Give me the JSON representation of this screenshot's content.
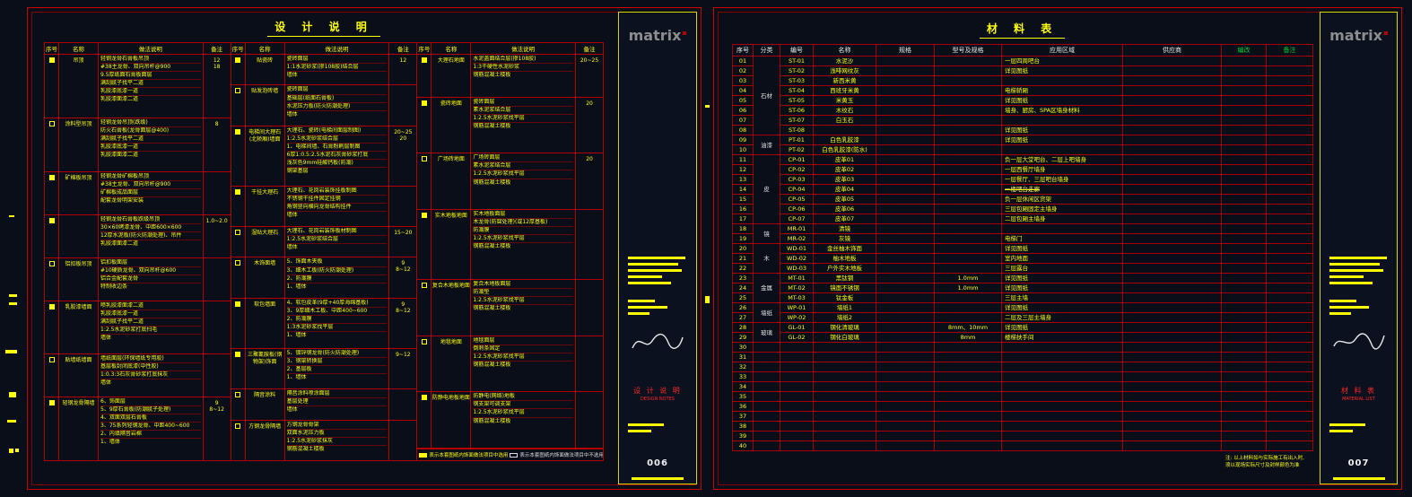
{
  "app": {
    "background": "#0a0e19",
    "grid_red": "#b40000",
    "accent_yellow": "#ffff00"
  },
  "left_sheet": {
    "title": "设 计 说 明",
    "columns": [
      "序号",
      "名称",
      "做法说明",
      "备注"
    ],
    "groups": [
      {
        "rows": [
          {
            "seq": "filled",
            "name": "吊顶",
            "desc": [
              "轻钢龙骨石膏板吊顶",
              "#38主龙骨、双向吊杆@900",
              "9.5厚纸面石膏板面层",
              "满刮腻子找平二道",
              "乳胶漆底漆一道",
              "乳胶漆面漆二道"
            ],
            "note": "12\n18"
          },
          {
            "seq": "empty",
            "name": "涂料型吊顶",
            "desc": [
              "轻钢龙骨吊顶(跌级)",
              "防火石膏板(龙骨面层@400)",
              "满刮腻子找平二道",
              "乳胶漆底漆一道",
              "乳胶漆面漆二道"
            ],
            "note": "8"
          },
          {
            "seq": "filled",
            "name": "矿棉板吊顶",
            "desc": [
              "轻钢龙骨矿棉板吊顶",
              "#38主龙骨、双向吊杆@900",
              "矿棉板成品面层",
              "配套龙骨明架安装"
            ],
            "note": ""
          },
          {
            "seq": "filled",
            "name": "",
            "desc": [
              "轻钢龙骨石膏板跌级吊顶",
              "30×60烤漆龙骨、中距600×600",
              "12厚水泥板(防火防潮处理)、吊件",
              "乳胶漆面漆二道"
            ],
            "note": "1.0~2.0"
          },
          {
            "seq": "empty",
            "name": "铝扣板吊顶",
            "desc": [
              "铝扣板面层",
              "#10硬质龙骨、双向吊杆@600",
              "铝合金配套龙骨",
              "特制收边条"
            ],
            "note": ""
          },
          {
            "seq": "filled",
            "name": "乳胶漆墙面",
            "desc": [
              "喷乳胶漆面漆二道",
              "乳胶漆底漆一道",
              "满刮腻子找平二道",
              "1:2.5水泥砂浆打底扫毛",
              "墙体"
            ],
            "note": ""
          },
          {
            "seq": "empty",
            "name": "贴墙纸墙面",
            "desc": [
              "墙纸面层(环保墙纸专用胶)",
              "基层板封闭底漆(中性胶)",
              "1:0.3:3石灰膏砂浆打底抹灰",
              "墙体"
            ],
            "note": ""
          },
          {
            "seq": "filled",
            "name": "轻钢龙骨隔墙",
            "desc": [
              "6、饰面层",
              "5、9厚石膏板(防潮腻子处理)",
              "4、双面双层石膏板",
              "3、75系列轻钢龙骨、中距400~600",
              "2、内填隔音岩棉",
              "1、墙体"
            ],
            "note": "9\n8~12"
          }
        ]
      },
      {
        "rows": [
          {
            "seq": "filled",
            "name": "贴瓷砖",
            "desc": [
              "瓷砖面层",
              "1:1水泥砂浆(掺108胶)结合层",
              "墙体"
            ],
            "note": "12"
          },
          {
            "seq": "empty",
            "name": "贴发泡砖墙",
            "desc": [
              "瓷砖面层",
              "基础层(纸面石膏板)",
              "水泥压力板(防火防潮处理)",
              "墙体"
            ],
            "note": ""
          },
          {
            "seq": "filled",
            "name": "电梯间大理石(北轿厢)墙面",
            "desc": [
              "大理石、瓷砖(电梯间面层制图)",
              "1:2.5水泥砂浆结合层",
              "1、电梯间墙、石膏粉刷层制图",
              "6厚1:0.5:2.5水泥石灰膏砂浆打底",
              "浅灰色9mm硅酸钙板(防潮)",
              "钢架基层"
            ],
            "note": "20~25\n20"
          },
          {
            "seq": "filled",
            "name": "干挂大理石",
            "desc": [
              "大理石、花岗岩装饰挂板制图",
              "不锈钢干挂件固定挂钢",
              "角钢竖向横向龙骨结构挂件",
              "墙体"
            ],
            "note": ""
          },
          {
            "seq": "empty",
            "name": "湿贴大理石",
            "desc": [
              "大理石、花岗岩装饰板材制图",
              "1:2.5水泥砂浆结合层",
              "墙体"
            ],
            "note": "15~20"
          },
          {
            "seq": "empty",
            "name": "木饰面墙",
            "desc": [
              "5、饰面木夹板",
              "3、细木工板(防火防潮处理)",
              "2、防潮膜",
              "1、墙体"
            ],
            "note": "9\n8~12"
          },
          {
            "seq": "filled",
            "name": "软包墙面",
            "desc": [
              "4、软包皮革(9厚+40厚海绵基板)",
              "3、9厚细木工板、中距400~600",
              "2、防潮膜",
              "1:3水泥砂浆找平层",
              "1、墙体"
            ],
            "note": "9\n8~12"
          },
          {
            "seq": "filled",
            "name": "三聚氰胺板(钢物架)饰面",
            "desc": [
              "5、镀锌钢龙骨(防火防潮处理)",
              "3、钢架转换层",
              "2、基层板",
              "1、墙体"
            ],
            "note": "9~12"
          },
          {
            "seq": "empty",
            "name": "隔音涂料",
            "desc": [
              "隔音涂料喷涂面层",
              "基层处理",
              "墙体"
            ],
            "note": ""
          },
          {
            "seq": "empty",
            "name": "方钢龙骨隔墙",
            "desc": [
              "方钢龙骨骨架",
              "双面水泥压力板",
              "1:2.5水泥砂浆抹灰",
              "钢筋混凝土楼板"
            ],
            "note": ""
          }
        ]
      },
      {
        "rows": [
          {
            "seq": "filled",
            "name": "大理石地面",
            "desc": [
              "水泥盖面结合层(掺108胶)",
              "1:3干硬性水泥砂浆",
              "钢筋混凝土楼板"
            ],
            "note": "20~25"
          },
          {
            "seq": "filled",
            "name": "瓷砖地面",
            "desc": [
              "瓷砖面层",
              "素水泥浆结合层",
              "1:2.5水泥砂浆找平层",
              "钢筋混凝土楼板"
            ],
            "note": "20"
          },
          {
            "seq": "empty",
            "name": "广场砖地面",
            "desc": [
              "广场砖面层",
              "素水泥浆结合层",
              "1:2.5水泥砂浆找平层",
              "钢筋混凝土楼板"
            ],
            "note": "20"
          },
          {
            "seq": "filled",
            "name": "实木地板地面",
            "desc": [
              "实木地板面层",
              "木龙骨(防腐处理)(或12厚基板)",
              "防潮膜",
              "1:2.5水泥砂浆找平层",
              "钢筋混凝土楼板"
            ],
            "note": ""
          },
          {
            "seq": "empty",
            "name": "复合木地板地面",
            "desc": [
              "复合木地板面层",
              "防潮垫",
              "1:2.5水泥砂浆找平层",
              "钢筋混凝土楼板"
            ],
            "note": ""
          },
          {
            "seq": "empty",
            "name": "地毯地面",
            "desc": [
              "地毯面层",
              "倒刺条固定",
              "1:2.5水泥砂浆找平层",
              "钢筋混凝土楼板"
            ],
            "note": ""
          },
          {
            "seq": "filled",
            "name": "防静电地板地面",
            "desc": [
              "防静电(网络)地板",
              "钢支架可调支架",
              "1:2.5水泥砂浆找平层",
              "钢筋混凝土楼板"
            ],
            "note": ""
          }
        ]
      }
    ],
    "legend": {
      "used": "表示本套图纸内饰面做法项目中选用",
      "unused": "表示本套图纸内饰面做法项目中不选用"
    },
    "strip": {
      "logo": "matrix",
      "title_cn": "设 计 说 明",
      "title_en": "DESIGN NOTES",
      "number": "006"
    }
  },
  "right_sheet": {
    "title": "材 料 表",
    "table": {
      "columns": [
        "序号",
        "分类",
        "编号",
        "名称",
        "规格",
        "型号及规格",
        "应用区域",
        "供应商",
        "编改",
        "备注"
      ],
      "categories": [
        {
          "label": "石材",
          "start": 1,
          "span": 8
        },
        {
          "label": "油漆",
          "start": 9,
          "span": 2
        },
        {
          "label": "皮",
          "start": 11,
          "span": 7
        },
        {
          "label": "镜",
          "start": 18,
          "span": 2
        },
        {
          "label": "木",
          "start": 20,
          "span": 3
        },
        {
          "label": "金属",
          "start": 23,
          "span": 3
        },
        {
          "label": "墙纸",
          "start": 26,
          "span": 2
        },
        {
          "label": "玻璃",
          "start": 28,
          "span": 2
        }
      ],
      "rows": [
        {
          "no": "01",
          "code": "ST-01",
          "name": "水泥沙",
          "spec": "",
          "model": "",
          "area": "一层四周吧台",
          "sup": "",
          "edit": "",
          "note": ""
        },
        {
          "no": "02",
          "code": "ST-02",
          "name": "浅啡网纹灰",
          "spec": "",
          "model": "",
          "area": "详见图纸",
          "sup": "",
          "edit": "",
          "note": ""
        },
        {
          "no": "03",
          "code": "ST-03",
          "name": "新西米黄",
          "spec": "",
          "model": "",
          "area": "",
          "sup": "",
          "edit": "",
          "note": ""
        },
        {
          "no": "04",
          "code": "ST-04",
          "name": "西班牙米黄",
          "spec": "",
          "model": "",
          "area": "电梯轿厢",
          "sup": "",
          "edit": "",
          "note": ""
        },
        {
          "no": "05",
          "code": "ST-05",
          "name": "米黄玉",
          "spec": "",
          "model": "",
          "area": "详见图纸",
          "sup": "",
          "edit": "",
          "note": ""
        },
        {
          "no": "06",
          "code": "ST-06",
          "name": "木纹石",
          "spec": "",
          "model": "",
          "area": "墙身、厨房、SPA区墙身材料",
          "sup": "",
          "edit": "",
          "note": ""
        },
        {
          "no": "07",
          "code": "ST-07",
          "name": "白玉石",
          "spec": "",
          "model": "",
          "area": "",
          "sup": "",
          "edit": "",
          "note": ""
        },
        {
          "no": "08",
          "code": "ST-08",
          "name": "",
          "spec": "",
          "model": "",
          "area": "详见图纸",
          "sup": "",
          "edit": "",
          "note": ""
        },
        {
          "no": "09",
          "code": "PT-01",
          "name": "白色乳胶漆",
          "spec": "",
          "model": "",
          "area": "详见图纸",
          "sup": "",
          "edit": "",
          "note": ""
        },
        {
          "no": "10",
          "code": "PT-02",
          "name": "白色乳胶漆(防水)",
          "spec": "",
          "model": "",
          "area": "",
          "sup": "",
          "edit": "",
          "note": ""
        },
        {
          "no": "11",
          "code": "CP-01",
          "name": "皮革01",
          "spec": "",
          "model": "",
          "area": "负一层大堂吧台、二层上吧墙身",
          "sup": "",
          "edit": "",
          "note": ""
        },
        {
          "no": "12",
          "code": "CP-02",
          "name": "皮革02",
          "spec": "",
          "model": "",
          "area": "一层西餐厅墙身",
          "sup": "",
          "edit": "",
          "note": ""
        },
        {
          "no": "13",
          "code": "CP-03",
          "name": "皮革03",
          "spec": "",
          "model": "",
          "area": "一层餐厅、三层吧台墙身",
          "sup": "",
          "edit": "",
          "note": ""
        },
        {
          "no": "14",
          "code": "CP-04",
          "name": "皮革04",
          "spec": "",
          "model": "",
          "area": "一楼吧台走廊",
          "sup": "",
          "edit": "",
          "note": "",
          "strike": true
        },
        {
          "no": "15",
          "code": "CP-05",
          "name": "皮革05",
          "spec": "",
          "model": "",
          "area": "负一层休闲区货架",
          "sup": "",
          "edit": "",
          "note": ""
        },
        {
          "no": "16",
          "code": "CP-06",
          "name": "皮革06",
          "spec": "",
          "model": "",
          "area": "三层包厢固定主墙身",
          "sup": "",
          "edit": "",
          "note": ""
        },
        {
          "no": "17",
          "code": "CP-07",
          "name": "皮革07",
          "spec": "",
          "model": "",
          "area": "二层包厢主墙身",
          "sup": "",
          "edit": "",
          "note": ""
        },
        {
          "no": "18",
          "code": "MR-01",
          "name": "清镜",
          "spec": "",
          "model": "",
          "area": "",
          "sup": "",
          "edit": "",
          "note": ""
        },
        {
          "no": "19",
          "code": "MR-02",
          "name": "灰镜",
          "spec": "",
          "model": "",
          "area": "电梯门",
          "sup": "",
          "edit": "",
          "note": ""
        },
        {
          "no": "20",
          "code": "WD-01",
          "name": "金丝柚木饰面",
          "spec": "",
          "model": "",
          "area": "详见图纸",
          "sup": "",
          "edit": "",
          "note": ""
        },
        {
          "no": "21",
          "code": "WD-02",
          "name": "柚木地板",
          "spec": "",
          "model": "",
          "area": "室内地面",
          "sup": "",
          "edit": "",
          "note": ""
        },
        {
          "no": "22",
          "code": "WD-03",
          "name": "户外实木地板",
          "spec": "",
          "model": "",
          "area": "三层露台",
          "sup": "",
          "edit": "",
          "note": ""
        },
        {
          "no": "23",
          "code": "MT-01",
          "name": "黑钛钢",
          "spec": "",
          "model": "1.0mm",
          "area": "详见图纸",
          "sup": "",
          "edit": "",
          "note": ""
        },
        {
          "no": "24",
          "code": "MT-02",
          "name": "镜面不锈钢",
          "spec": "",
          "model": "1.0mm",
          "area": "详见图纸",
          "sup": "",
          "edit": "",
          "note": ""
        },
        {
          "no": "25",
          "code": "MT-03",
          "name": "钛金板",
          "spec": "",
          "model": "",
          "area": "三层主墙",
          "sup": "",
          "edit": "",
          "note": ""
        },
        {
          "no": "26",
          "code": "WP-01",
          "name": "墙纸1",
          "spec": "",
          "model": "",
          "area": "详见图纸",
          "sup": "",
          "edit": "",
          "note": ""
        },
        {
          "no": "27",
          "code": "WP-02",
          "name": "墙纸2",
          "spec": "",
          "model": "",
          "area": "二层及三层主墙身",
          "sup": "",
          "edit": "",
          "note": ""
        },
        {
          "no": "28",
          "code": "GL-01",
          "name": "钢化清玻璃",
          "spec": "",
          "model": "8mm、10mm",
          "area": "详见图纸",
          "sup": "",
          "edit": "",
          "note": ""
        },
        {
          "no": "29",
          "code": "GL-02",
          "name": "钢化白玻璃",
          "spec": "",
          "model": "8mm",
          "area": "楼梯扶手间",
          "sup": "",
          "edit": "",
          "note": ""
        },
        {
          "no": "30",
          "code": "",
          "name": "",
          "spec": "",
          "model": "",
          "area": "",
          "sup": "",
          "edit": "",
          "note": ""
        },
        {
          "no": "31",
          "code": "",
          "name": "",
          "spec": "",
          "model": "",
          "area": "",
          "sup": "",
          "edit": "",
          "note": ""
        },
        {
          "no": "32",
          "code": "",
          "name": "",
          "spec": "",
          "model": "",
          "area": "",
          "sup": "",
          "edit": "",
          "note": ""
        },
        {
          "no": "33",
          "code": "",
          "name": "",
          "spec": "",
          "model": "",
          "area": "",
          "sup": "",
          "edit": "",
          "note": ""
        },
        {
          "no": "34",
          "code": "",
          "name": "",
          "spec": "",
          "model": "",
          "area": "",
          "sup": "",
          "edit": "",
          "note": ""
        },
        {
          "no": "35",
          "code": "",
          "name": "",
          "spec": "",
          "model": "",
          "area": "",
          "sup": "",
          "edit": "",
          "note": ""
        },
        {
          "no": "36",
          "code": "",
          "name": "",
          "spec": "",
          "model": "",
          "area": "",
          "sup": "",
          "edit": "",
          "note": ""
        },
        {
          "no": "37",
          "code": "",
          "name": "",
          "spec": "",
          "model": "",
          "area": "",
          "sup": "",
          "edit": "",
          "note": ""
        },
        {
          "no": "38",
          "code": "",
          "name": "",
          "spec": "",
          "model": "",
          "area": "",
          "sup": "",
          "edit": "",
          "note": ""
        },
        {
          "no": "39",
          "code": "",
          "name": "",
          "spec": "",
          "model": "",
          "area": "",
          "sup": "",
          "edit": "",
          "note": ""
        },
        {
          "no": "40",
          "code": "",
          "name": "",
          "spec": "",
          "model": "",
          "area": "",
          "sup": "",
          "edit": "",
          "note": ""
        }
      ]
    },
    "footnote": [
      "注: 以上材料如与实际施工有出入时,",
      "须以现场实际尺寸及封样颜色为准"
    ],
    "strip": {
      "logo": "matrix",
      "title_cn": "材 料 表",
      "title_en": "MATERIAL LIST",
      "number": "007"
    }
  }
}
